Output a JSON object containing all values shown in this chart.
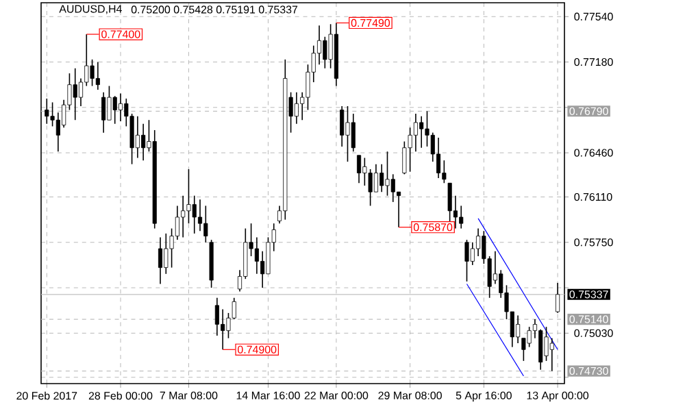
{
  "chart_data": {
    "type": "candlestick",
    "title": "AUDUSD,H4",
    "subtitle": "0.75200 0.75428 0.75191 0.75337",
    "color": "#000000",
    "categories": [
      "20 Feb 2017",
      null,
      null,
      null,
      null,
      null,
      null,
      null,
      null,
      null,
      null,
      null,
      null,
      "28 Feb 00:00",
      null,
      null,
      null,
      null,
      null,
      null,
      null,
      null,
      null,
      null,
      null,
      "7 Mar 08:00",
      null,
      null,
      null,
      null,
      null,
      null,
      null,
      null,
      null,
      null,
      null,
      null,
      null,
      "14 Mar 16:00",
      null,
      null,
      null,
      null,
      null,
      null,
      null,
      null,
      null,
      null,
      null,
      "22 Mar 00:00",
      null,
      null,
      null,
      null,
      null,
      null,
      null,
      null,
      null,
      null,
      null,
      null,
      "29 Mar 08:00",
      null,
      null,
      null,
      null,
      null,
      null,
      null,
      null,
      null,
      null,
      null,
      null,
      "5 Apr 16:00",
      null,
      null,
      null,
      null,
      null,
      null,
      null,
      null,
      null,
      null,
      null,
      null,
      "13 Apr 00:00"
    ],
    "ohlc": [
      [
        0.768,
        0.7689,
        0.7669,
        0.7675
      ],
      [
        0.7675,
        0.7686,
        0.7667,
        0.7672
      ],
      [
        0.7672,
        0.7678,
        0.7647,
        0.766
      ],
      [
        0.7668,
        0.7688,
        0.7666,
        0.7684
      ],
      [
        0.7684,
        0.7709,
        0.768,
        0.77
      ],
      [
        0.77,
        0.7713,
        0.7672,
        0.769
      ],
      [
        0.769,
        0.7705,
        0.7683,
        0.7702
      ],
      [
        0.7702,
        0.774,
        0.7699,
        0.7715
      ],
      [
        0.7715,
        0.772,
        0.7699,
        0.7705
      ],
      [
        0.7705,
        0.7718,
        0.7696,
        0.77
      ],
      [
        0.769,
        0.7694,
        0.7662,
        0.7672
      ],
      [
        0.7672,
        0.7699,
        0.7672,
        0.769
      ],
      [
        0.769,
        0.7691,
        0.7669,
        0.768
      ],
      [
        0.768,
        0.7693,
        0.7671,
        0.7685
      ],
      [
        0.7685,
        0.7689,
        0.7667,
        0.7675
      ],
      [
        0.7675,
        0.7677,
        0.7637,
        0.765
      ],
      [
        0.765,
        0.7675,
        0.7642,
        0.766
      ],
      [
        0.766,
        0.7669,
        0.764,
        0.765
      ],
      [
        0.765,
        0.7672,
        0.7647,
        0.7655
      ],
      [
        0.7655,
        0.7664,
        0.7586,
        0.759
      ],
      [
        0.757,
        0.7579,
        0.7542,
        0.7555
      ],
      [
        0.7555,
        0.7582,
        0.755,
        0.757
      ],
      [
        0.757,
        0.7586,
        0.7555,
        0.758
      ],
      [
        0.758,
        0.7604,
        0.7577,
        0.7595
      ],
      [
        0.7595,
        0.7612,
        0.7579,
        0.76
      ],
      [
        0.76,
        0.7633,
        0.759,
        0.7605
      ],
      [
        0.7605,
        0.7612,
        0.7582,
        0.7595
      ],
      [
        0.7595,
        0.7609,
        0.7584,
        0.759
      ],
      [
        0.759,
        0.7604,
        0.7575,
        0.758
      ],
      [
        0.7575,
        0.7577,
        0.7539,
        0.7545
      ],
      [
        0.7525,
        0.7531,
        0.7501,
        0.751
      ],
      [
        0.751,
        0.7522,
        0.749,
        0.7505
      ],
      [
        0.7505,
        0.7519,
        0.7499,
        0.7515
      ],
      [
        0.7515,
        0.7531,
        0.7514,
        0.7528
      ],
      [
        0.7538,
        0.7553,
        0.7536,
        0.7548
      ],
      [
        0.7548,
        0.7586,
        0.7546,
        0.7575
      ],
      [
        0.7575,
        0.759,
        0.7564,
        0.757
      ],
      [
        0.757,
        0.7579,
        0.755,
        0.756
      ],
      [
        0.756,
        0.7568,
        0.7539,
        0.755
      ],
      [
        0.755,
        0.7579,
        0.755,
        0.7575
      ],
      [
        0.7575,
        0.759,
        0.7568,
        0.7585
      ],
      [
        0.7592,
        0.7604,
        0.759,
        0.76
      ],
      [
        0.76,
        0.772,
        0.7593,
        0.7705
      ],
      [
        0.769,
        0.7694,
        0.7662,
        0.7675
      ],
      [
        0.7675,
        0.7694,
        0.7669,
        0.7685
      ],
      [
        0.7685,
        0.7694,
        0.7672,
        0.769
      ],
      [
        0.769,
        0.7716,
        0.768,
        0.771
      ],
      [
        0.771,
        0.7731,
        0.7702,
        0.7725
      ],
      [
        0.7725,
        0.7747,
        0.7716,
        0.7735
      ],
      [
        0.7735,
        0.7738,
        0.7713,
        0.772
      ],
      [
        0.772,
        0.7748,
        0.7713,
        0.774
      ],
      [
        0.774,
        0.7749,
        0.7699,
        0.7705
      ],
      [
        0.768,
        0.7683,
        0.7651,
        0.766
      ],
      [
        0.766,
        0.7683,
        0.7639,
        0.767
      ],
      [
        0.767,
        0.7677,
        0.7647,
        0.765
      ],
      [
        0.7644,
        0.7644,
        0.7622,
        0.763
      ],
      [
        0.763,
        0.7642,
        0.762,
        0.7635
      ],
      [
        0.763,
        0.7633,
        0.7604,
        0.7615
      ],
      [
        0.7615,
        0.7637,
        0.7615,
        0.763
      ],
      [
        0.763,
        0.7637,
        0.7615,
        0.762
      ],
      [
        0.762,
        0.7647,
        0.7612,
        0.7625
      ],
      [
        0.7625,
        0.7629,
        0.7607,
        0.7615
      ],
      [
        0.7615,
        0.7615,
        0.7587,
        0.7612
      ],
      [
        0.763,
        0.7655,
        0.7629,
        0.765
      ],
      [
        0.765,
        0.7666,
        0.7631,
        0.766
      ],
      [
        0.766,
        0.7677,
        0.7647,
        0.767
      ],
      [
        0.767,
        0.7675,
        0.765,
        0.7665
      ],
      [
        0.7665,
        0.7679,
        0.7651,
        0.766
      ],
      [
        0.766,
        0.7662,
        0.7639,
        0.7645
      ],
      [
        0.7645,
        0.7658,
        0.7626,
        0.763
      ],
      [
        0.763,
        0.764,
        0.7622,
        0.7625
      ],
      [
        0.7622,
        0.7622,
        0.759,
        0.76
      ],
      [
        0.76,
        0.7612,
        0.7586,
        0.7595
      ],
      [
        0.7595,
        0.7604,
        0.7586,
        0.759
      ],
      [
        0.7575,
        0.7577,
        0.7544,
        0.756
      ],
      [
        0.756,
        0.7575,
        0.7557,
        0.757
      ],
      [
        0.757,
        0.7586,
        0.7564,
        0.758
      ],
      [
        0.758,
        0.7584,
        0.7558,
        0.7562
      ],
      [
        0.7562,
        0.7564,
        0.7531,
        0.754
      ],
      [
        0.7545,
        0.7568,
        0.7542,
        0.755
      ],
      [
        0.755,
        0.7553,
        0.7531,
        0.7535
      ],
      [
        0.7535,
        0.7541,
        0.7514,
        0.752
      ],
      [
        0.752,
        0.752,
        0.7492,
        0.75
      ],
      [
        0.75,
        0.7517,
        0.7495,
        0.751
      ],
      [
        0.7499,
        0.7499,
        0.7481,
        0.749
      ],
      [
        0.7495,
        0.7508,
        0.7492,
        0.7505
      ],
      [
        0.7505,
        0.7514,
        0.7499,
        0.751
      ],
      [
        0.7505,
        0.7506,
        0.7474,
        0.748
      ],
      [
        0.7485,
        0.7508,
        0.7481,
        0.75
      ],
      [
        0.749,
        0.7499,
        0.7473,
        0.7495
      ],
      [
        0.752,
        0.75428,
        0.75191,
        0.75337
      ]
    ],
    "series": [
      {
        "type": "line",
        "color": "#0000ff",
        "values": [
          null,
          null,
          null,
          null,
          null,
          null,
          null,
          null,
          null,
          null,
          null,
          null,
          null,
          null,
          null,
          null,
          null,
          null,
          null,
          null,
          null,
          null,
          null,
          null,
          null,
          null,
          null,
          null,
          null,
          null,
          null,
          null,
          null,
          null,
          null,
          null,
          null,
          null,
          null,
          null,
          null,
          null,
          null,
          null,
          null,
          null,
          null,
          null,
          null,
          null,
          null,
          null,
          null,
          null,
          null,
          null,
          null,
          null,
          null,
          null,
          null,
          null,
          null,
          null,
          null,
          null,
          null,
          null,
          null,
          null,
          null,
          null,
          null,
          null,
          null,
          null,
          0.7594,
          null,
          null,
          null,
          null,
          null,
          null,
          null,
          null,
          null,
          null,
          null,
          null,
          null,
          0.749
        ]
      },
      {
        "type": "line",
        "color": "#0000ff",
        "values": [
          null,
          null,
          null,
          null,
          null,
          null,
          null,
          null,
          null,
          null,
          null,
          null,
          null,
          null,
          null,
          null,
          null,
          null,
          null,
          null,
          null,
          null,
          null,
          null,
          null,
          null,
          null,
          null,
          null,
          null,
          null,
          null,
          null,
          null,
          null,
          null,
          null,
          null,
          null,
          null,
          null,
          null,
          null,
          null,
          null,
          null,
          null,
          null,
          null,
          null,
          null,
          null,
          null,
          null,
          null,
          null,
          null,
          null,
          null,
          null,
          null,
          null,
          null,
          null,
          null,
          null,
          null,
          null,
          null,
          null,
          null,
          null,
          null,
          null,
          0.7542,
          null,
          null,
          null,
          null,
          null,
          null,
          null,
          null,
          null,
          0.7469,
          null,
          null,
          null,
          null,
          null,
          null
        ]
      }
    ],
    "ylim": [
      0.7463,
      0.7765
    ],
    "yticks": [
      {
        "value": 0.7754,
        "label": "0.77540"
      },
      {
        "value": 0.7718,
        "label": "0.77180"
      },
      {
        "value": 0.7682,
        "label": null
      },
      {
        "value": 0.7646,
        "label": "0.76460"
      },
      {
        "value": 0.7611,
        "label": "0.76110"
      },
      {
        "value": 0.7575,
        "label": "0.75750"
      },
      {
        "value": 0.7539,
        "label": null
      },
      {
        "value": 0.7503,
        "label": "0.75030"
      },
      {
        "value": 0.7468,
        "label": null
      }
    ],
    "grid": true,
    "ref_lines": [
      {
        "axis": "y",
        "value": 0.7679,
        "label": "0.76790",
        "color": "#c0c0c0",
        "line_style": "dashed"
      },
      {
        "axis": "y",
        "value": 0.7514,
        "label": "0.75140",
        "color": "#c0c0c0",
        "line_style": "dashed"
      },
      {
        "axis": "y",
        "value": 0.7473,
        "label": "0.74730",
        "color": "#c0c0c0",
        "line_style": "dashed"
      },
      {
        "axis": "y",
        "value": 0.75337,
        "label": "0.75337",
        "color": "#c0c0c0",
        "line_style": "solid"
      }
    ],
    "annotations": [
      "0.77400",
      "0.77490",
      "0.74900",
      "0.75870"
    ]
  }
}
